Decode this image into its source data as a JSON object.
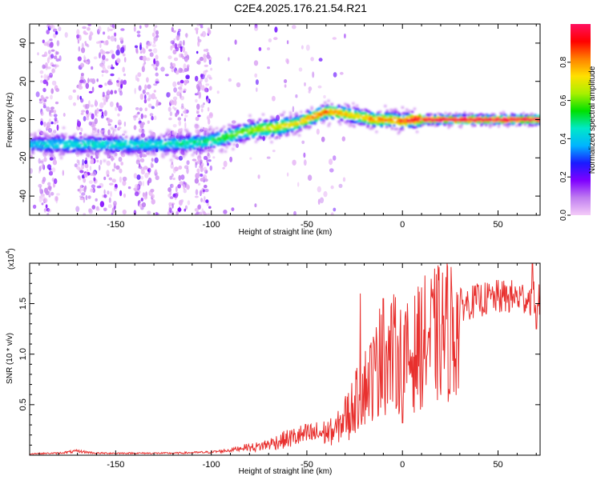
{
  "title": "C2E4.2025.176.21.54.R21",
  "chart_data": [
    {
      "type": "heatmap",
      "xlabel": "Height of straight line (km)",
      "ylabel": "Frequency (Hz)",
      "xlim": [
        -195,
        72
      ],
      "ylim": [
        -50,
        50
      ],
      "x_ticks": [
        -150,
        -100,
        -50,
        0,
        50
      ],
      "y_ticks": [
        -40,
        -20,
        0,
        20,
        40
      ],
      "colorbar": {
        "label": "Normalized spectral amplitude",
        "range": [
          0,
          1
        ],
        "ticks": [
          0.0,
          0.2,
          0.4,
          0.6,
          0.8
        ],
        "tick_labels": [
          "0.0",
          "0.2",
          "0.4",
          "0.6",
          "0.8"
        ],
        "colors": [
          "#f4ccf8",
          "#c07ef0",
          "#7f00ff",
          "#1a1aff",
          "#00b4ff",
          "#00e8c8",
          "#00e000",
          "#a8f000",
          "#ffe000",
          "#ff8000",
          "#ff0000",
          "#ff1060"
        ]
      },
      "ridge": {
        "x": [
          -195,
          -175,
          -150,
          -125,
          -105,
          -95,
          -85,
          -75,
          -65,
          -55,
          -45,
          -40,
          -35,
          -25,
          -15,
          -5,
          0,
          5,
          15,
          35,
          50,
          72
        ],
        "y": [
          -13,
          -13,
          -13,
          -13,
          -12,
          -10,
          -7,
          -5,
          -4,
          -2,
          2,
          4,
          4,
          2,
          0,
          0,
          -1,
          0,
          0,
          0,
          0,
          0
        ],
        "amplitude": [
          0.4,
          0.45,
          0.45,
          0.45,
          0.5,
          0.55,
          0.6,
          0.65,
          0.7,
          0.75,
          0.85,
          0.85,
          0.8,
          0.75,
          0.8,
          0.85,
          0.9,
          0.95,
          1.0,
          1.0,
          1.0,
          1.0
        ]
      }
    },
    {
      "type": "line",
      "xlabel": "Height of straight line (km)",
      "ylabel": "SNR (10 * v/v)",
      "y_scale_label": "(x10",
      "y_scale_exponent": "4",
      "y_multiplier": 10000,
      "xlim": [
        -195,
        72
      ],
      "ylim": [
        0,
        1.9
      ],
      "x_ticks": [
        -150,
        -100,
        -50,
        0,
        50
      ],
      "y_ticks": [
        0.5,
        1.0,
        1.5
      ],
      "y_tick_labels": [
        "0.5",
        "1.0",
        "1.5"
      ],
      "color": "#e8302e",
      "envelope": {
        "x": [
          -195,
          -180,
          -170,
          -160,
          -140,
          -120,
          -100,
          -90,
          -85,
          -75,
          -65,
          -55,
          -45,
          -35,
          -30,
          -25,
          -20,
          -10,
          -5,
          0,
          5,
          10,
          20,
          30,
          40,
          50,
          60,
          72
        ],
        "y": [
          0.015,
          0.02,
          0.04,
          0.02,
          0.02,
          0.02,
          0.03,
          0.05,
          0.07,
          0.1,
          0.16,
          0.22,
          0.25,
          0.28,
          0.45,
          0.6,
          0.8,
          1.1,
          1.2,
          1.1,
          1.15,
          1.3,
          1.42,
          1.5,
          1.55,
          1.58,
          1.58,
          1.56
        ]
      },
      "spikes": [
        {
          "x": -22,
          "y": 1.6
        },
        {
          "x": -12,
          "y": 1.45
        },
        {
          "x": -10,
          "y": 1.55
        },
        {
          "x": 0,
          "y": 0.32
        },
        {
          "x": -28,
          "y": 0.15
        },
        {
          "x": 68,
          "y": 1.9
        },
        {
          "x": 70,
          "y": 1.25
        }
      ]
    }
  ]
}
